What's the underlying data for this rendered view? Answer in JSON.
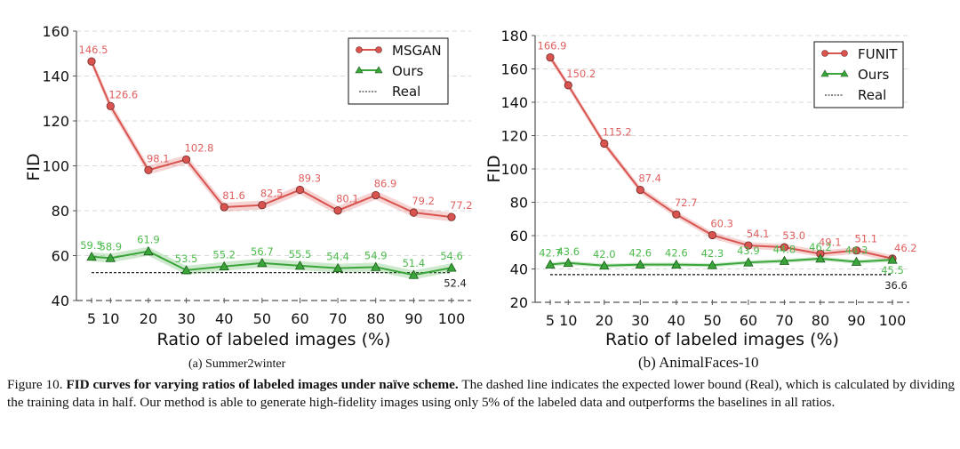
{
  "chart_data": [
    {
      "type": "line",
      "id": "a",
      "subcaption": "(a) Summer2winter",
      "xlabel": "Ratio of labeled images (%)",
      "ylabel": "FID",
      "x": [
        5,
        10,
        20,
        30,
        40,
        50,
        60,
        70,
        80,
        90,
        100
      ],
      "x_ticks": [
        "5",
        "10",
        "20",
        "30",
        "40",
        "50",
        "60",
        "70",
        "80",
        "90",
        "100"
      ],
      "ylim": [
        40,
        160
      ],
      "y_ticks": [
        40,
        60,
        80,
        100,
        120,
        140,
        160
      ],
      "grid": "horizontal-dashed",
      "legend": "top-right",
      "series": [
        {
          "name": "MSGAN",
          "marker": "circle",
          "color": "#d9534f",
          "label_color": "#e06060",
          "values": [
            146.5,
            126.6,
            98.1,
            102.8,
            81.6,
            82.5,
            89.3,
            80.1,
            86.9,
            79.2,
            77.2
          ],
          "labels": [
            "146.5",
            "126.6",
            "98.1",
            "102.8",
            "81.6",
            "82.5",
            "89.3",
            "80.1",
            "86.9",
            "79.2",
            "77.2"
          ],
          "band": 2.0
        },
        {
          "name": "Ours",
          "marker": "triangle",
          "color": "#3aa63a",
          "label_color": "#4cbb4c",
          "values": [
            59.5,
            58.9,
            61.9,
            53.5,
            55.2,
            56.7,
            55.5,
            54.4,
            54.9,
            51.4,
            54.6
          ],
          "labels": [
            "59.5",
            "58.9",
            "61.9",
            "53.5",
            "55.2",
            "56.7",
            "55.5",
            "54.4",
            "54.9",
            "51.4",
            "54.6"
          ],
          "band": 2.0
        },
        {
          "name": "Real",
          "marker": "none",
          "style": "dashed",
          "color": "#111111",
          "value": 52.4,
          "label": "52.4"
        }
      ]
    },
    {
      "type": "line",
      "id": "b",
      "subcaption": "(b) AnimalFaces-10",
      "xlabel": "Ratio of labeled images (%)",
      "ylabel": "FID",
      "x": [
        5,
        10,
        20,
        30,
        40,
        50,
        60,
        70,
        80,
        90,
        100
      ],
      "x_ticks": [
        "5",
        "10",
        "20",
        "30",
        "40",
        "50",
        "60",
        "70",
        "80",
        "90",
        "100"
      ],
      "ylim": [
        20,
        180
      ],
      "y_ticks": [
        20,
        40,
        60,
        80,
        100,
        120,
        140,
        160,
        180
      ],
      "grid": "horizontal-dashed",
      "legend": "top-right",
      "series": [
        {
          "name": "FUNIT",
          "marker": "circle",
          "color": "#d9534f",
          "label_color": "#e06060",
          "values": [
            166.9,
            150.2,
            115.2,
            87.4,
            72.7,
            60.3,
            54.1,
            53.0,
            49.1,
            51.1,
            46.2
          ],
          "labels": [
            "166.9",
            "150.2",
            "115.2",
            "87.4",
            "72.7",
            "60.3",
            "54.1",
            "53.0",
            "49.1",
            "51.1",
            "46.2"
          ],
          "band": 2.0
        },
        {
          "name": "Ours",
          "marker": "triangle",
          "color": "#3aa63a",
          "label_color": "#4cbb4c",
          "values": [
            42.7,
            43.6,
            42.0,
            42.6,
            42.6,
            42.3,
            43.9,
            44.8,
            46.2,
            44.3,
            45.5
          ],
          "labels": [
            "42.7",
            "43.6",
            "42.0",
            "42.6",
            "42.6",
            "42.3",
            "43.9",
            "44.8",
            "46.2",
            "44.3",
            "45.5"
          ],
          "band": 1.2
        },
        {
          "name": "Real",
          "marker": "none",
          "style": "dashed",
          "color": "#111111",
          "value": 36.6,
          "label": "36.6"
        }
      ]
    }
  ],
  "caption": {
    "prefix": "Figure 10. ",
    "bold": "FID curves for varying ratios of labeled images under naïve scheme.",
    "rest": " The dashed line indicates the expected lower bound (Real), which is calculated by dividing the training data in half. Our method is able to generate high-fidelity images using only 5% of the labeled data and outperforms the baselines in all ratios."
  }
}
